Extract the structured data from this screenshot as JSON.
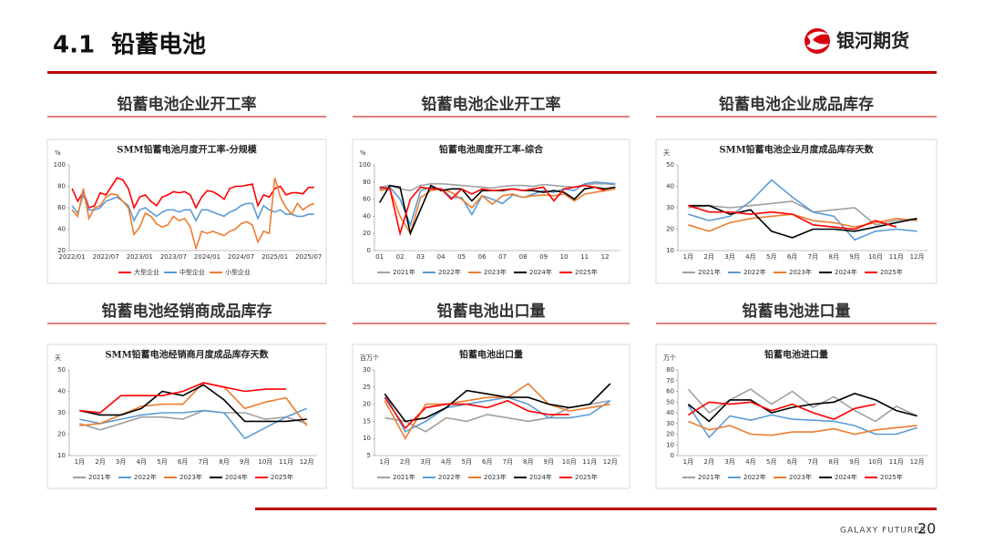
{
  "header": {
    "number": "4.1",
    "title": "铅蓄电池",
    "logo": "银河期货"
  },
  "sections": [
    "铅蓄电池企业开工率",
    "铅蓄电池企业开工率",
    "铅蓄电池企业成品库存",
    "铅蓄电池经销商成品库存",
    "铅蓄电池出口量",
    "铅蓄电池进口量"
  ],
  "chart_data": [
    {
      "type": "line",
      "title": "SMM铅蓄电池月度开工率-分规模",
      "y_unit": "%",
      "ylim": [
        20,
        100
      ],
      "yticks": [
        20,
        40,
        60,
        80,
        100
      ],
      "categories": [
        "2022/01",
        null,
        null,
        null,
        null,
        null,
        "2022/07",
        null,
        null,
        null,
        null,
        null,
        "2023/01",
        null,
        null,
        null,
        null,
        null,
        "2023/07",
        null,
        null,
        null,
        null,
        null,
        "2024/01",
        null,
        null,
        null,
        null,
        null,
        "2024/07",
        null,
        null,
        null,
        null,
        null,
        "2025/01",
        null,
        null,
        null,
        null,
        null,
        "2025/07",
        null
      ],
      "series": [
        {
          "name": "大型企业",
          "color": "#ff0000",
          "values": [
            78,
            66,
            75,
            60,
            62,
            74,
            72,
            80,
            88,
            86,
            78,
            60,
            70,
            72,
            66,
            62,
            70,
            72,
            75,
            74,
            75,
            72,
            60,
            70,
            76,
            75,
            72,
            68,
            78,
            80,
            80,
            81,
            82,
            62,
            72,
            70,
            78,
            80,
            72,
            74,
            74,
            73,
            79,
            79
          ]
        },
        {
          "name": "中型企业",
          "color": "#5b9bd5",
          "values": [
            62,
            55,
            72,
            58,
            58,
            60,
            66,
            68,
            70,
            66,
            62,
            48,
            58,
            60,
            56,
            52,
            56,
            58,
            58,
            56,
            58,
            58,
            48,
            58,
            58,
            56,
            54,
            52,
            56,
            58,
            62,
            64,
            64,
            50,
            62,
            58,
            56,
            58,
            54,
            54,
            52,
            52,
            54,
            54
          ]
        },
        {
          "name": "小型企业",
          "color": "#ed7d31",
          "values": [
            58,
            52,
            78,
            50,
            60,
            62,
            70,
            73,
            72,
            66,
            60,
            35,
            42,
            55,
            52,
            45,
            42,
            44,
            52,
            48,
            50,
            42,
            22,
            38,
            36,
            38,
            36,
            34,
            38,
            40,
            45,
            47,
            44,
            28,
            38,
            36,
            88,
            70,
            60,
            54,
            64,
            58,
            62,
            64
          ]
        }
      ]
    },
    {
      "type": "line",
      "title": "铅蓄电池周度开工率-综合",
      "y_unit": "%",
      "ylim": [
        0,
        100
      ],
      "yticks": [
        0,
        20,
        40,
        60,
        80,
        100
      ],
      "categories": [
        "01",
        null,
        "02",
        null,
        "03",
        null,
        "04",
        null,
        "05",
        null,
        "06",
        null,
        "07",
        null,
        "08",
        null,
        "09",
        null,
        "10",
        null,
        "11",
        null,
        "12",
        null
      ],
      "series": [
        {
          "name": "2021年",
          "color": "#a0a0a0",
          "values": [
            74,
            76,
            72,
            70,
            76,
            78,
            78,
            77,
            76,
            75,
            74,
            73,
            75,
            76,
            76,
            75,
            77,
            76,
            75,
            74,
            77,
            78,
            78,
            77
          ]
        },
        {
          "name": "2022年",
          "color": "#5b9bd5",
          "values": [
            72,
            74,
            60,
            30,
            70,
            74,
            72,
            62,
            62,
            42,
            64,
            60,
            55,
            65,
            62,
            66,
            70,
            68,
            72,
            70,
            78,
            80,
            79,
            78
          ]
        },
        {
          "name": "2023年",
          "color": "#ed7d31",
          "values": [
            70,
            72,
            40,
            20,
            62,
            70,
            72,
            68,
            60,
            50,
            64,
            54,
            64,
            66,
            62,
            64,
            65,
            64,
            66,
            58,
            66,
            68,
            70,
            72
          ]
        },
        {
          "name": "2024年",
          "color": "#000000",
          "values": [
            56,
            76,
            74,
            20,
            48,
            76,
            70,
            72,
            72,
            58,
            70,
            70,
            70,
            72,
            70,
            70,
            68,
            70,
            68,
            60,
            72,
            74,
            72,
            74
          ]
        },
        {
          "name": "2025年",
          "color": "#ff0000",
          "values": [
            74,
            72,
            20,
            60,
            74,
            72,
            72,
            60,
            72,
            66,
            72,
            70,
            71,
            72,
            70,
            72,
            74,
            58,
            72,
            74,
            76,
            74,
            70,
            null
          ]
        }
      ]
    },
    {
      "type": "line",
      "title": "SMM铅蓄电池企业月度成品库存天数",
      "y_unit": "天",
      "ylim": [
        10,
        50
      ],
      "yticks": [
        10,
        20,
        30,
        40,
        50
      ],
      "categories": [
        "1月",
        "2月",
        "3月",
        "4月",
        "5月",
        "6月",
        "7月",
        "8月",
        "9月",
        "10月",
        "11月",
        "12月"
      ],
      "series": [
        {
          "name": "2021年",
          "color": "#a0a0a0",
          "values": [
            30,
            31,
            30,
            31,
            32,
            33,
            28,
            29,
            30,
            22,
            24,
            25
          ]
        },
        {
          "name": "2022年",
          "color": "#5b9bd5",
          "values": [
            27,
            24,
            26,
            33,
            43,
            35,
            28,
            26,
            15,
            19,
            20,
            19
          ]
        },
        {
          "name": "2023年",
          "color": "#ed7d31",
          "values": [
            22,
            19,
            23,
            25,
            26,
            27,
            24,
            23,
            21,
            23,
            25,
            24
          ]
        },
        {
          "name": "2024年",
          "color": "#000000",
          "values": [
            31,
            31,
            27,
            29,
            19,
            16,
            20,
            20,
            19,
            21,
            23,
            25
          ]
        },
        {
          "name": "2025年",
          "color": "#ff0000",
          "values": [
            31,
            28,
            28,
            27,
            28,
            27,
            22,
            21,
            20,
            24,
            21,
            null
          ]
        }
      ]
    },
    {
      "type": "line",
      "title": "SMM铅蓄电池经销商月度成品库存天数",
      "y_unit": "天",
      "ylim": [
        10,
        50
      ],
      "yticks": [
        10,
        20,
        30,
        40,
        50
      ],
      "categories": [
        "1月",
        "2月",
        "3月",
        "4月",
        "5月",
        "6月",
        "7月",
        "8月",
        "9月",
        "10月",
        "11月",
        "12月"
      ],
      "series": [
        {
          "name": "2021年",
          "color": "#a0a0a0",
          "values": [
            25,
            22,
            25,
            28,
            28,
            27,
            31,
            30,
            30,
            27,
            28,
            25
          ]
        },
        {
          "name": "2022年",
          "color": "#5b9bd5",
          "values": [
            27,
            25,
            27,
            29,
            30,
            30,
            31,
            30,
            18,
            23,
            28,
            32
          ]
        },
        {
          "name": "2023年",
          "color": "#ed7d31",
          "values": [
            24,
            25,
            29,
            33,
            34,
            34,
            44,
            42,
            32,
            35,
            37,
            24
          ]
        },
        {
          "name": "2024年",
          "color": "#000000",
          "values": [
            31,
            29,
            29,
            32,
            40,
            38,
            43,
            36,
            26,
            26,
            26,
            27
          ]
        },
        {
          "name": "2025年",
          "color": "#ff0000",
          "values": [
            31,
            30,
            38,
            38,
            38,
            40,
            44,
            42,
            40,
            41,
            41,
            null
          ]
        }
      ]
    },
    {
      "type": "line",
      "title": "铅蓄电池出口量",
      "y_unit": "百万个",
      "ylim": [
        5,
        30
      ],
      "yticks": [
        5,
        10,
        15,
        20,
        25,
        30
      ],
      "categories": [
        "1月",
        "2月",
        "3月",
        "4月",
        "5月",
        "6月",
        "7月",
        "8月",
        "9月",
        "10月",
        "11月",
        "12月"
      ],
      "series": [
        {
          "name": "2021年",
          "color": "#a0a0a0",
          "values": [
            16,
            15,
            12,
            16,
            15,
            17,
            16,
            15,
            16,
            19,
            20,
            21
          ]
        },
        {
          "name": "2022年",
          "color": "#5b9bd5",
          "values": [
            23,
            12,
            15,
            19,
            20,
            21,
            22,
            20,
            16,
            16,
            17,
            21
          ]
        },
        {
          "name": "2023年",
          "color": "#ed7d31",
          "values": [
            21,
            10,
            20,
            20,
            21,
            22,
            22,
            26,
            20,
            18,
            19,
            20
          ]
        },
        {
          "name": "2024年",
          "color": "#000000",
          "values": [
            23,
            15,
            16,
            19,
            24,
            23,
            22,
            22,
            20,
            19,
            20,
            26
          ]
        },
        {
          "name": "2025年",
          "color": "#ff0000",
          "values": [
            22,
            13,
            19,
            20,
            20,
            19,
            21,
            18,
            17,
            17,
            null,
            null
          ]
        }
      ]
    },
    {
      "type": "line",
      "title": "铅蓄电池进口量",
      "y_unit": "万个",
      "ylim": [
        0,
        80
      ],
      "yticks": [
        0,
        10,
        20,
        30,
        40,
        50,
        60,
        70,
        80
      ],
      "categories": [
        "1月",
        "2月",
        "3月",
        "4月",
        "5月",
        "6月",
        "7月",
        "8月",
        "9月",
        "10月",
        "11月",
        "12月"
      ],
      "series": [
        {
          "name": "2021年",
          "color": "#a0a0a0",
          "values": [
            62,
            40,
            52,
            62,
            48,
            60,
            45,
            55,
            42,
            32,
            46,
            37
          ]
        },
        {
          "name": "2022年",
          "color": "#5b9bd5",
          "values": [
            47,
            17,
            37,
            33,
            38,
            34,
            33,
            32,
            28,
            20,
            20,
            26
          ]
        },
        {
          "name": "2023年",
          "color": "#ed7d31",
          "values": [
            32,
            24,
            28,
            20,
            19,
            22,
            22,
            25,
            20,
            24,
            26,
            28
          ]
        },
        {
          "name": "2024年",
          "color": "#000000",
          "values": [
            48,
            32,
            52,
            52,
            40,
            45,
            48,
            50,
            58,
            52,
            42,
            37
          ]
        },
        {
          "name": "2025年",
          "color": "#ff0000",
          "values": [
            38,
            50,
            48,
            50,
            42,
            48,
            40,
            34,
            44,
            48,
            null,
            null
          ]
        }
      ]
    }
  ],
  "footer": {
    "brand": "GALAXY FUTURES",
    "page": 20
  }
}
